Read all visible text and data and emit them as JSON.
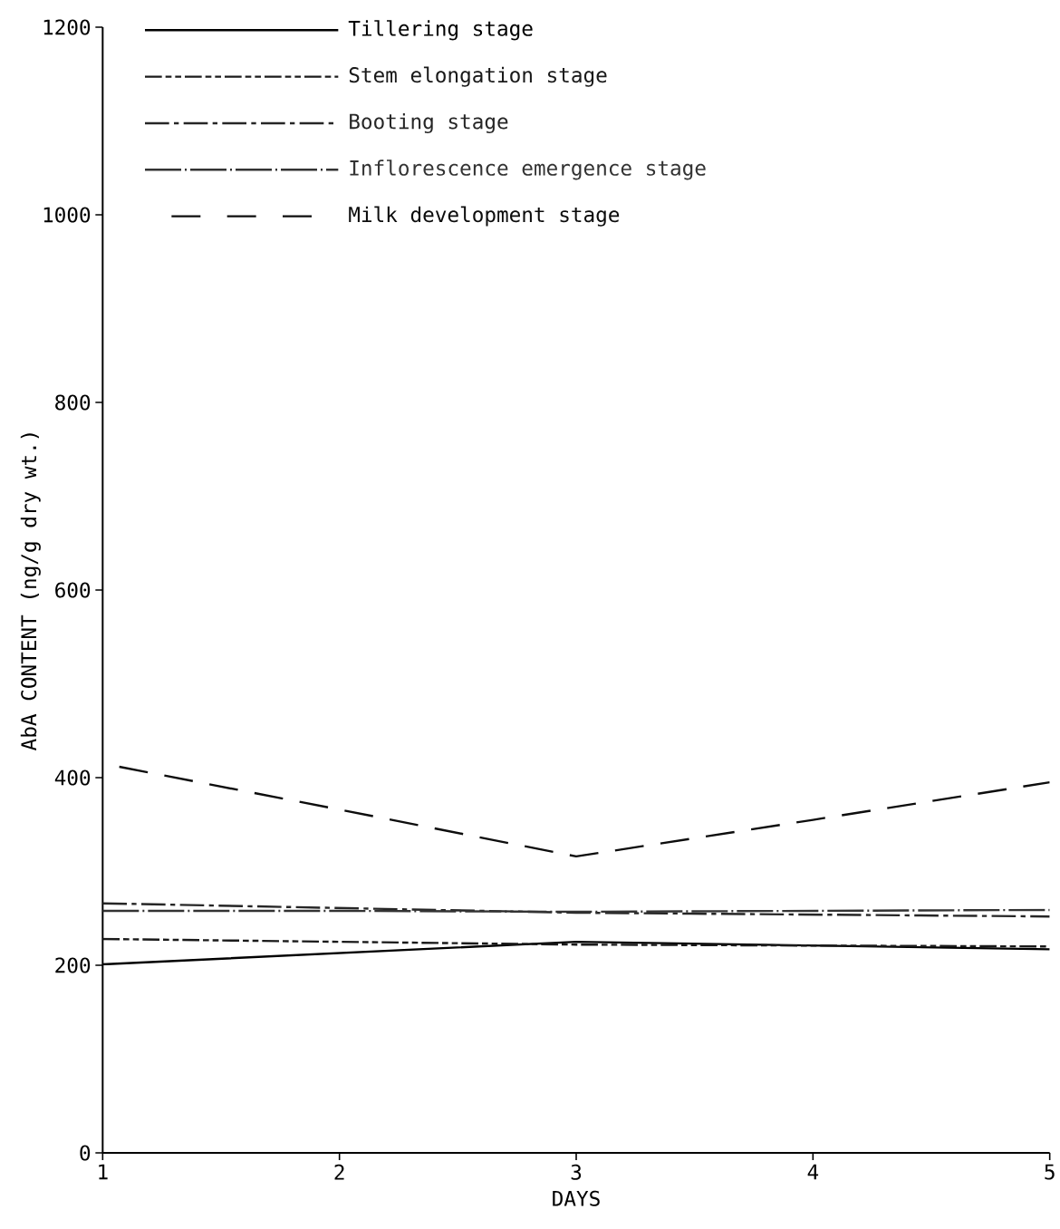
{
  "chart_data": {
    "type": "line",
    "xlabel": "DAYS",
    "ylabel": "AbA CONTENT (ng/g dry wt.)",
    "x": [
      1,
      2,
      3,
      4,
      5
    ],
    "xlim": [
      1,
      5
    ],
    "xticks": [
      1,
      2,
      3,
      4,
      5
    ],
    "ylim": [
      0,
      1200
    ],
    "yticks": [
      0,
      200,
      400,
      600,
      800,
      1000,
      1200
    ],
    "grid": false,
    "legend": "top left",
    "marker": "none",
    "series": [
      {
        "name": "Tillering stage",
        "color": "#000000",
        "line_style": "solid",
        "values": [
          201,
          213,
          225,
          221,
          217
        ]
      },
      {
        "name": "Stem elongation stage",
        "color": "#1a1a1a",
        "line_style": "dashdotdot",
        "values": [
          228,
          225,
          222,
          221,
          220
        ]
      },
      {
        "name": "Booting stage",
        "color": "#262626",
        "line_style": "dashdot",
        "values": [
          266,
          261,
          256,
          254,
          252
        ]
      },
      {
        "name": "Inflorescence emergence stage",
        "color": "#333333",
        "line_style": "longdashdot",
        "values": [
          258,
          258,
          257,
          258,
          259
        ]
      },
      {
        "name": "Milk development stage",
        "color": "#0d0d0d",
        "line_style": "dashed",
        "values": [
          415,
          366,
          316,
          355,
          395
        ]
      }
    ]
  }
}
